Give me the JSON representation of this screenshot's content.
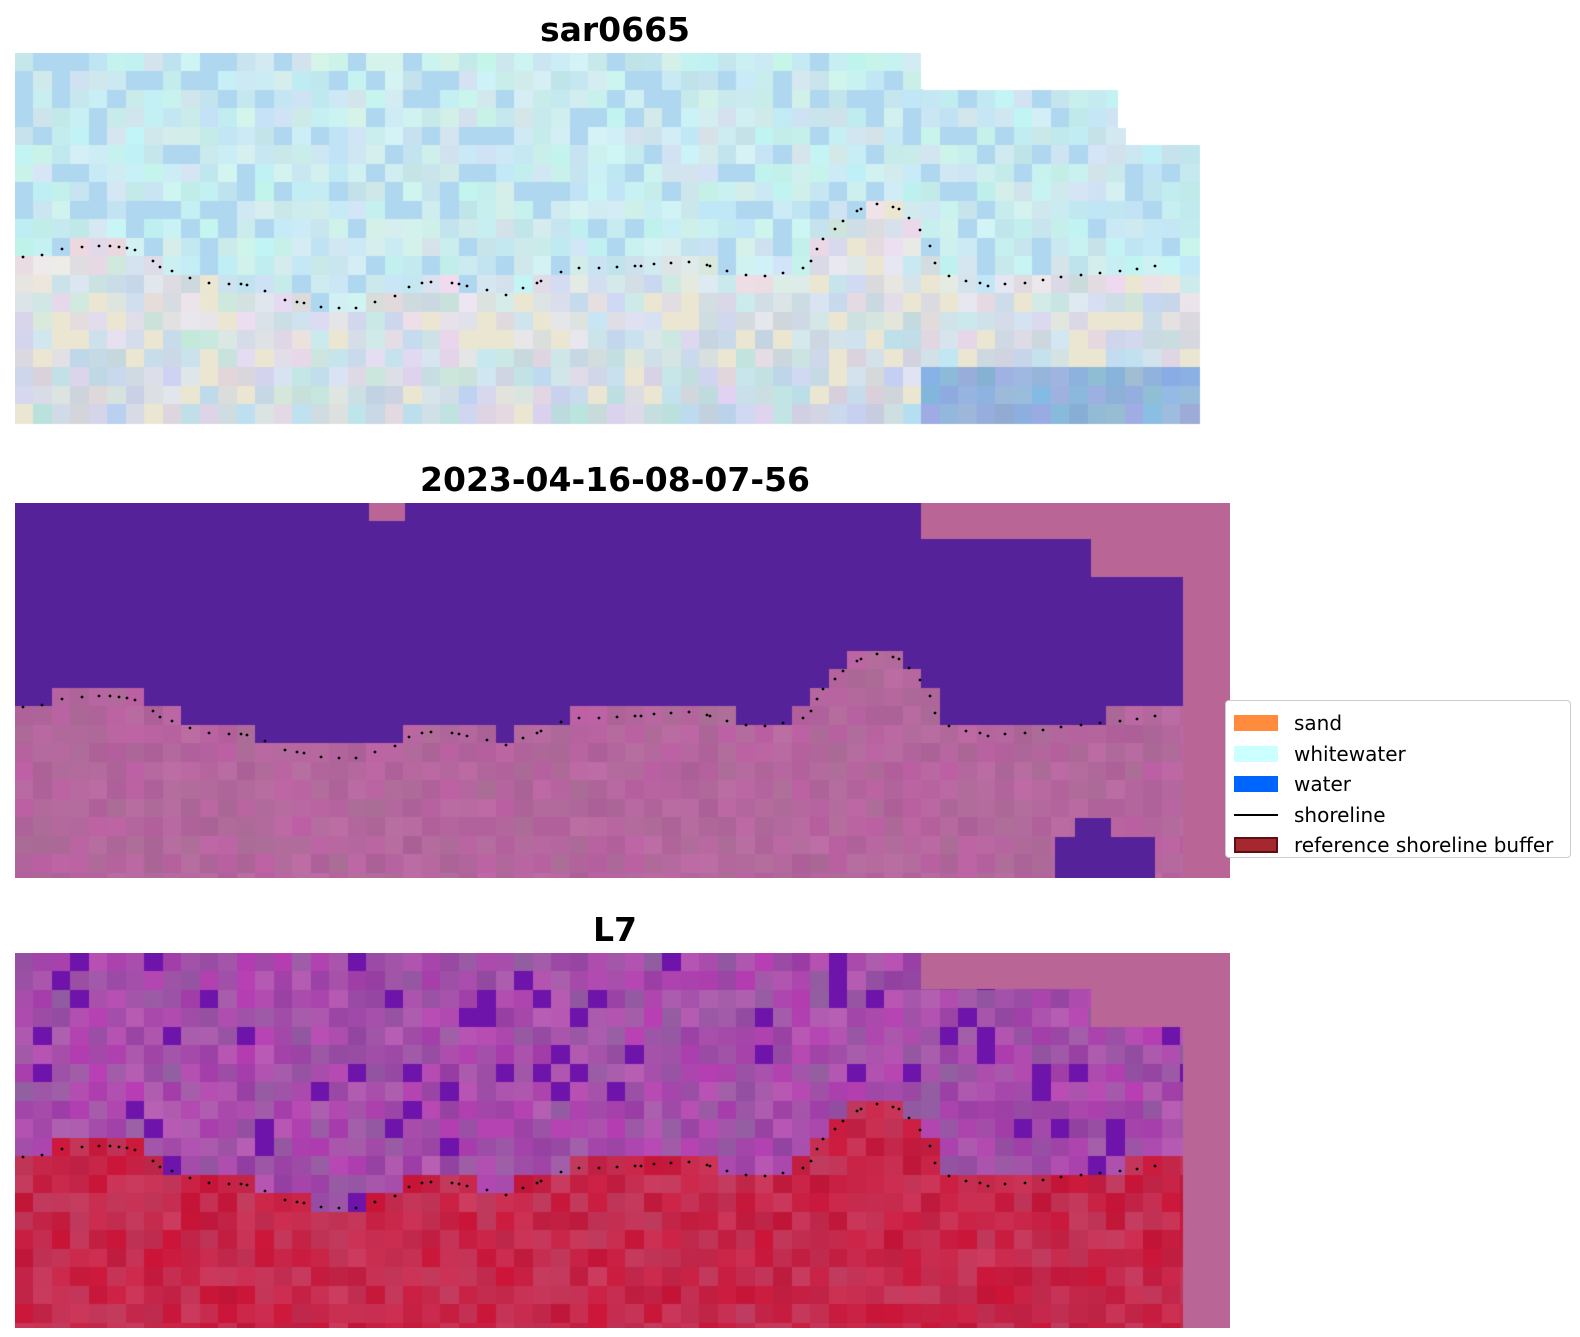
{
  "panels": [
    {
      "id": "rgb",
      "title": "sar0665",
      "style": "rgb"
    },
    {
      "id": "classified",
      "title": "2023-04-16-08-07-56",
      "style": "classified"
    },
    {
      "id": "index",
      "title": "L7",
      "style": "index"
    }
  ],
  "legend": {
    "items": [
      {
        "label": "sand",
        "kind": "patch",
        "color": "#ff8c3c"
      },
      {
        "label": "whitewater",
        "kind": "patch",
        "color": "#ccffff"
      },
      {
        "label": "water",
        "kind": "patch",
        "color": "#0064ff"
      },
      {
        "label": "shoreline",
        "kind": "line",
        "color": "#000000"
      },
      {
        "label": "reference shoreline buffer",
        "kind": "patch",
        "color": "#a5282e",
        "edge": "#5a1014"
      }
    ]
  },
  "colors": {
    "water_class": "#55229a",
    "nodata": "#b96696",
    "sand_class_base": "#b06a98",
    "index_high": "#c0103a",
    "index_low": "#8a3aa0",
    "shoreline_points": "#000000"
  }
}
